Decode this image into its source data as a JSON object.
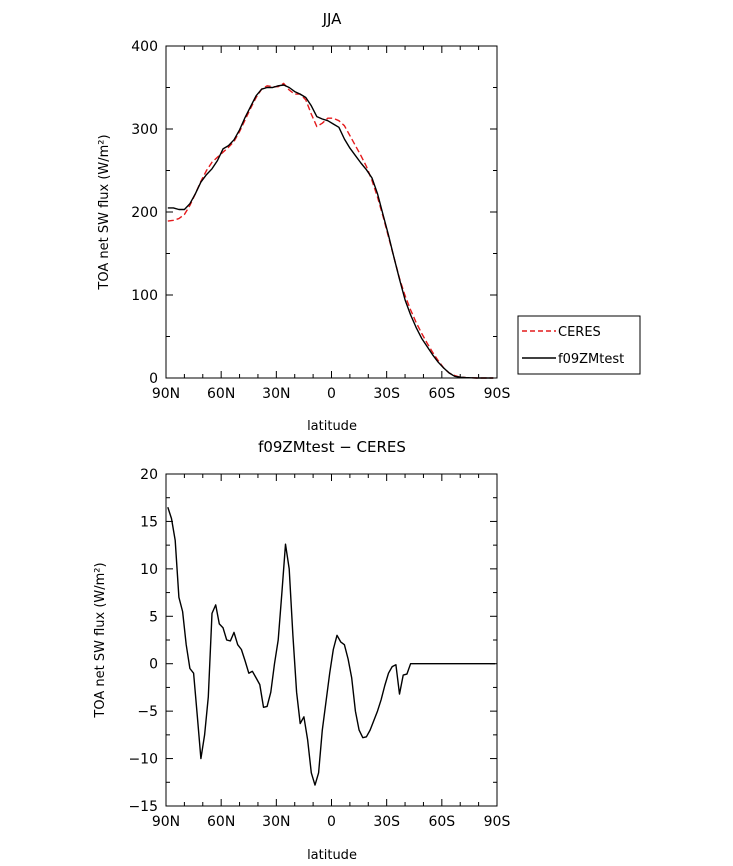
{
  "chart_data": [
    {
      "type": "line",
      "title": "JJA",
      "xlabel": "latitude",
      "ylabel": "TOA net SW flux (W/m²)",
      "xlim": [
        90,
        -90
      ],
      "ylim": [
        0,
        400
      ],
      "xticks": [
        90,
        60,
        30,
        0,
        -30,
        -60,
        -90
      ],
      "xtick_labels": [
        "90N",
        "60N",
        "30N",
        "0",
        "30S",
        "60S",
        "90S"
      ],
      "yticks": [
        0,
        100,
        200,
        300,
        400
      ],
      "ytick_labels": [
        "0",
        "100",
        "200",
        "300",
        "400"
      ],
      "legend": {
        "placement": "right"
      },
      "series": [
        {
          "name": "CERES",
          "color": "#e41a1c",
          "style": "dashed",
          "x": [
            89,
            86,
            83,
            80,
            77,
            74,
            71,
            68,
            65,
            62,
            59,
            56,
            53,
            50,
            47,
            44,
            41,
            38,
            35,
            32,
            29,
            26,
            23,
            20,
            17,
            14,
            11,
            8,
            5,
            2,
            -1,
            -4,
            -7,
            -10,
            -13,
            -16,
            -19,
            -22,
            -25,
            -28,
            -31,
            -34,
            -37,
            -40,
            -43,
            -46,
            -49,
            -52,
            -55,
            -58,
            -61,
            -64,
            -67,
            -70,
            -73,
            -76,
            -79,
            -82,
            -85,
            -88
          ],
          "values": [
            189,
            190,
            192,
            197,
            208,
            222,
            237,
            250,
            260,
            266,
            272,
            278,
            285,
            297,
            311,
            325,
            338,
            348,
            352,
            351,
            351,
            355,
            347,
            342,
            342,
            335,
            318,
            303,
            307,
            313,
            313,
            310,
            304,
            292,
            280,
            268,
            255,
            238,
            218,
            195,
            170,
            145,
            120,
            99,
            82,
            67,
            54,
            42,
            31,
            21,
            12,
            6,
            3,
            1,
            0.5,
            0.2,
            0,
            0,
            0,
            0
          ]
        },
        {
          "name": "f09ZMtest",
          "color": "#000000",
          "style": "solid",
          "x": [
            89,
            86,
            83,
            80,
            77,
            74,
            71,
            68,
            65,
            62,
            59,
            56,
            53,
            50,
            47,
            44,
            41,
            38,
            35,
            32,
            29,
            26,
            23,
            20,
            17,
            14,
            11,
            8,
            5,
            2,
            -1,
            -4,
            -7,
            -10,
            -13,
            -16,
            -19,
            -22,
            -25,
            -28,
            -31,
            -34,
            -37,
            -40,
            -43,
            -46,
            -49,
            -52,
            -55,
            -58,
            -61,
            -64,
            -67,
            -70,
            -73,
            -76,
            -79,
            -82,
            -85,
            -88
          ],
          "values": [
            205,
            205,
            203,
            203,
            210,
            222,
            236,
            245,
            252,
            262,
            276,
            280,
            287,
            299,
            314,
            327,
            340,
            348,
            350,
            350,
            352,
            353,
            350,
            345,
            342,
            338,
            328,
            315,
            312,
            310,
            306,
            302,
            288,
            277,
            268,
            259,
            251,
            241,
            222,
            197,
            172,
            145,
            119,
            94,
            76,
            61,
            48,
            38,
            28,
            19,
            12,
            6,
            2,
            1,
            0.5,
            0.2,
            0,
            0,
            0,
            0
          ]
        }
      ]
    },
    {
      "type": "line",
      "title": "f09ZMtest − CERES",
      "xlabel": "latitude",
      "ylabel": "TOA net SW flux (W/m²)",
      "xlim": [
        90,
        -90
      ],
      "ylim": [
        -15,
        20
      ],
      "xticks": [
        90,
        60,
        30,
        0,
        -30,
        -60,
        -90
      ],
      "xtick_labels": [
        "90N",
        "60N",
        "30N",
        "0",
        "30S",
        "60S",
        "90S"
      ],
      "yticks": [
        -15,
        -10,
        -5,
        0,
        5,
        10,
        15,
        20
      ],
      "ytick_labels": [
        "−15",
        "−10",
        "−5",
        "0",
        "5",
        "10",
        "15",
        "20"
      ],
      "series": [
        {
          "color": "#000000",
          "style": "solid",
          "x": [
            89,
            87,
            85,
            83,
            81,
            79,
            77,
            75,
            73,
            71,
            69,
            67,
            65,
            63,
            61,
            59,
            57,
            55,
            53,
            51,
            49,
            47,
            45,
            43,
            41,
            39,
            37,
            35,
            33,
            31,
            29,
            27,
            25,
            23,
            21,
            19,
            17,
            15,
            13,
            11,
            9,
            7,
            5,
            3,
            1,
            -1,
            -3,
            -5,
            -7,
            -9,
            -11,
            -13,
            -15,
            -17,
            -19,
            -21,
            -23,
            -25,
            -27,
            -29,
            -31,
            -33,
            -35,
            -37,
            -39,
            -41,
            -43,
            -45,
            -47,
            -49,
            -51,
            -53,
            -55,
            -57,
            -59,
            -61,
            -63,
            -65,
            -67,
            -69,
            -71,
            -73,
            -75,
            -77,
            -79,
            -81,
            -83,
            -85,
            -87,
            -89
          ],
          "values": [
            16.5,
            15.3,
            13,
            7,
            5.5,
            2,
            -0.5,
            -1,
            -5.5,
            -10,
            -7.5,
            -3.5,
            5.3,
            6.2,
            4.2,
            3.8,
            2.5,
            2.4,
            3.3,
            2,
            1.5,
            0.3,
            -1,
            -0.8,
            -1.5,
            -2.2,
            -4.6,
            -4.5,
            -3,
            0,
            2.5,
            7.5,
            12.6,
            10,
            3,
            -3,
            -6.3,
            -5.6,
            -8,
            -11.5,
            -12.8,
            -11.5,
            -7,
            -4,
            -1,
            1.5,
            3,
            2.3,
            2,
            0.5,
            -1.5,
            -5,
            -7,
            -7.8,
            -7.7,
            -7,
            -6,
            -5,
            -3.8,
            -2.3,
            -1,
            -0.3,
            -0.1,
            -3.2,
            -1.2,
            -1.1,
            0,
            0,
            0,
            0,
            0,
            0,
            0,
            0,
            0,
            0,
            0,
            0,
            0,
            0,
            0,
            0,
            0,
            0,
            0,
            0,
            0,
            0,
            0,
            0
          ]
        }
      ]
    }
  ]
}
